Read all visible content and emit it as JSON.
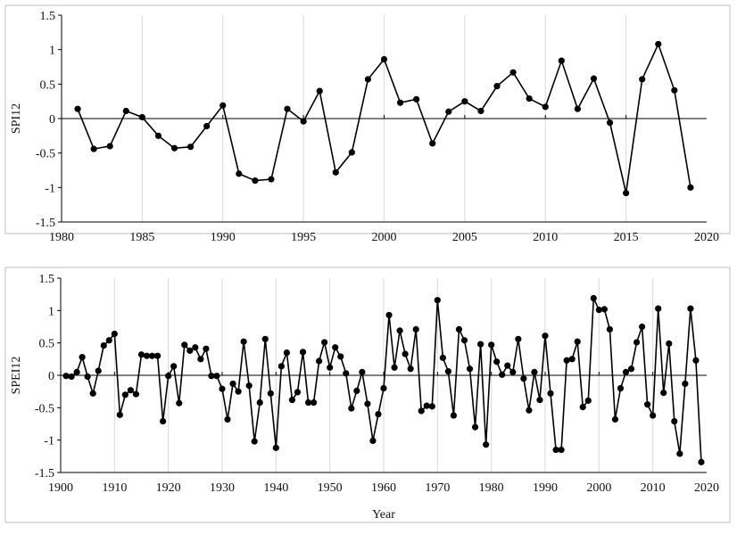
{
  "chart_data": [
    {
      "type": "line",
      "title": "",
      "xlabel": "",
      "ylabel": "SPI12",
      "xlim": [
        1980,
        2020
      ],
      "ylim": [
        -1.5,
        1.5
      ],
      "xticks": [
        "1980",
        "1985",
        "1990",
        "1995",
        "2000",
        "2005",
        "2010",
        "2015",
        "2020"
      ],
      "yticks": [
        "1.5",
        "1",
        "0.5",
        "0",
        "-0.5",
        "-1",
        "-1.5"
      ],
      "grid": "vertical",
      "legend": "none",
      "series": [
        {
          "x": [
            1981,
            1982,
            1983,
            1984,
            1985,
            1986,
            1987,
            1988,
            1989,
            1990,
            1991,
            1992,
            1993,
            1994,
            1995,
            1996,
            1997,
            1998,
            1999,
            2000,
            2001,
            2002,
            2003,
            2004,
            2005,
            2006,
            2007,
            2008,
            2009,
            2010,
            2011,
            2012,
            2013,
            2014,
            2015,
            2016,
            2017,
            2018,
            2019
          ],
          "values": [
            0.14,
            -0.44,
            -0.4,
            0.11,
            0.02,
            -0.25,
            -0.43,
            -0.41,
            -0.11,
            0.19,
            -0.8,
            -0.9,
            -0.88,
            0.14,
            -0.04,
            0.4,
            -0.78,
            -0.49,
            0.57,
            0.86,
            0.23,
            0.28,
            -0.36,
            0.1,
            0.25,
            0.11,
            0.47,
            0.67,
            0.29,
            0.17,
            0.84,
            0.14,
            0.58,
            -0.06,
            -1.08,
            0.57,
            1.08,
            0.41,
            -1.0
          ]
        }
      ]
    },
    {
      "type": "line",
      "title": "",
      "xlabel": "Year",
      "ylabel": "SPEI12",
      "xlim": [
        1900,
        2020
      ],
      "ylim": [
        -1.5,
        1.5
      ],
      "xticks": [
        "1900",
        "1910",
        "1920",
        "1930",
        "1940",
        "1950",
        "1960",
        "1970",
        "1980",
        "1990",
        "2000",
        "2010",
        "2020"
      ],
      "yticks": [
        "1.5",
        "1",
        "0.5",
        "0",
        "-0.5",
        "-1",
        "-1.5"
      ],
      "grid": "vertical",
      "legend": "none",
      "series": [
        {
          "x": [
            1901,
            1902,
            1903,
            1904,
            1905,
            1906,
            1907,
            1908,
            1909,
            1910,
            1911,
            1912,
            1913,
            1914,
            1915,
            1916,
            1917,
            1918,
            1919,
            1920,
            1921,
            1922,
            1923,
            1924,
            1925,
            1926,
            1927,
            1928,
            1929,
            1930,
            1931,
            1932,
            1933,
            1934,
            1935,
            1936,
            1937,
            1938,
            1939,
            1940,
            1941,
            1942,
            1943,
            1944,
            1945,
            1946,
            1947,
            1948,
            1949,
            1950,
            1951,
            1952,
            1953,
            1954,
            1955,
            1956,
            1957,
            1958,
            1959,
            1960,
            1961,
            1962,
            1963,
            1964,
            1965,
            1966,
            1967,
            1968,
            1969,
            1970,
            1971,
            1972,
            1973,
            1974,
            1975,
            1976,
            1977,
            1978,
            1979,
            1980,
            1981,
            1982,
            1983,
            1984,
            1985,
            1986,
            1987,
            1988,
            1989,
            1990,
            1991,
            1992,
            1993,
            1994,
            1995,
            1996,
            1997,
            1998,
            1999,
            2000,
            2001,
            2002,
            2003,
            2004,
            2005,
            2006,
            2007,
            2008,
            2009,
            2010,
            2011,
            2012,
            2013,
            2014,
            2015,
            2016,
            2017,
            2018,
            2019
          ],
          "values": [
            -0.01,
            -0.02,
            0.05,
            0.28,
            -0.02,
            -0.28,
            0.07,
            0.46,
            0.54,
            0.64,
            -0.61,
            -0.3,
            -0.23,
            -0.29,
            0.32,
            0.3,
            0.3,
            0.3,
            -0.71,
            -0.01,
            0.14,
            -0.43,
            0.47,
            0.38,
            0.43,
            0.25,
            0.41,
            -0.01,
            -0.01,
            -0.21,
            -0.68,
            -0.13,
            -0.25,
            0.52,
            -0.16,
            -1.02,
            -0.42,
            0.56,
            -0.28,
            -1.12,
            0.14,
            0.35,
            -0.38,
            -0.26,
            0.36,
            -0.42,
            -0.42,
            0.22,
            0.51,
            0.12,
            0.43,
            0.29,
            0.03,
            -0.51,
            -0.24,
            0.05,
            -0.44,
            -1.01,
            -0.6,
            -0.2,
            0.93,
            0.12,
            0.69,
            0.33,
            0.1,
            0.71,
            -0.55,
            -0.47,
            -0.48,
            1.16,
            0.27,
            0.06,
            -0.62,
            0.71,
            0.54,
            0.1,
            -0.8,
            0.48,
            -1.07,
            0.47,
            0.21,
            0.01,
            0.15,
            0.05,
            0.56,
            -0.05,
            -0.54,
            0.05,
            -0.38,
            0.61,
            -0.28,
            -1.15,
            -1.15,
            0.23,
            0.25,
            0.52,
            -0.49,
            -0.39,
            1.19,
            1.01,
            1.02,
            0.71,
            -0.68,
            -0.2,
            0.05,
            0.1,
            0.51,
            0.75,
            -0.45,
            -0.62,
            1.03,
            -0.27,
            0.49,
            -0.71,
            -1.21,
            -0.13,
            1.03,
            0.23,
            -1.34
          ]
        }
      ]
    }
  ]
}
